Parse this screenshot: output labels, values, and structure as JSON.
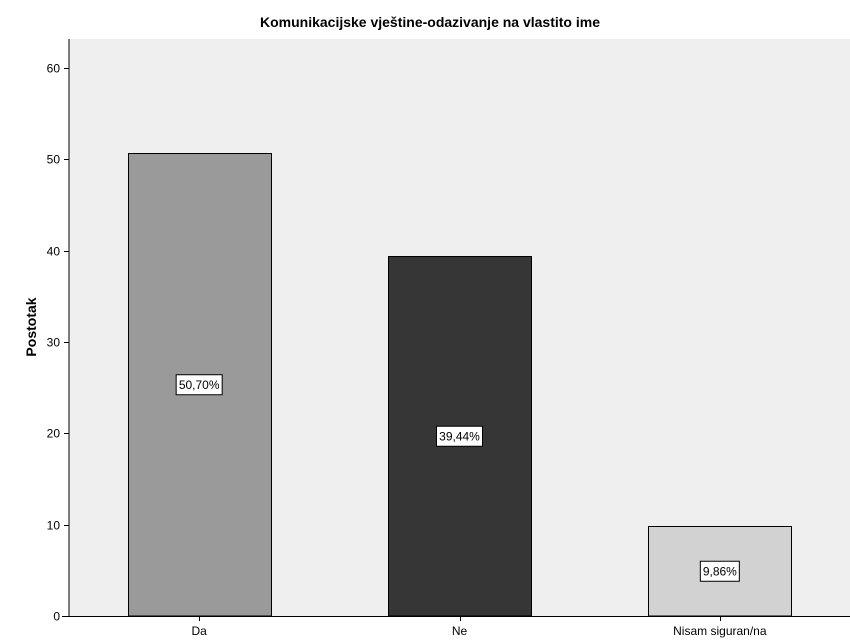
{
  "chart_data": {
    "type": "bar",
    "title": "Komunikacijske vještine-odazivanje na vlastito ime",
    "xlabel": "",
    "ylabel": "Postotak",
    "categories": [
      "Da",
      "Ne",
      "Nisam siguran/na"
    ],
    "values": [
      50.7,
      39.44,
      9.86
    ],
    "data_labels": [
      "50,70%",
      "39,44%",
      "9,86%"
    ],
    "bar_colors": [
      "#9a9a9a",
      "#363636",
      "#d2d2d2"
    ],
    "plot_background": "#efefef",
    "ylim": [
      0,
      60
    ],
    "yticks": [
      0,
      10,
      20,
      30,
      40,
      50,
      60
    ],
    "ytick_labels": [
      "0",
      "10",
      "20",
      "30",
      "40",
      "50",
      "60"
    ],
    "grid": false,
    "legend": "none"
  }
}
